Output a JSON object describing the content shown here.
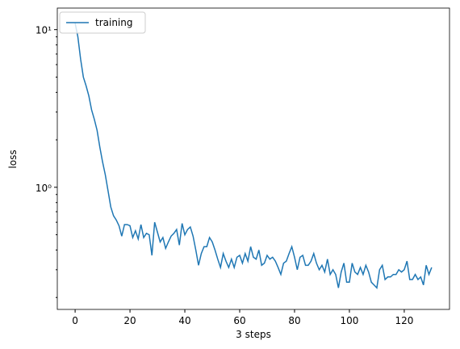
{
  "chart_data": {
    "type": "line",
    "xlabel": "3 steps",
    "ylabel": "loss",
    "x": [
      0,
      1,
      2,
      3,
      4,
      5,
      6,
      7,
      8,
      9,
      10,
      11,
      12,
      13,
      14,
      15,
      16,
      17,
      18,
      19,
      20,
      21,
      22,
      23,
      24,
      25,
      26,
      27,
      28,
      29,
      30,
      31,
      32,
      33,
      34,
      35,
      36,
      37,
      38,
      39,
      40,
      41,
      42,
      43,
      44,
      45,
      46,
      47,
      48,
      49,
      50,
      51,
      52,
      53,
      54,
      55,
      56,
      57,
      58,
      59,
      60,
      61,
      62,
      63,
      64,
      65,
      66,
      67,
      68,
      69,
      70,
      71,
      72,
      73,
      74,
      75,
      76,
      77,
      78,
      79,
      80,
      81,
      82,
      83,
      84,
      85,
      86,
      87,
      88,
      89,
      90,
      91,
      92,
      93,
      94,
      95,
      96,
      97,
      98,
      99,
      100,
      101,
      102,
      103,
      104,
      105,
      106,
      107,
      108,
      109,
      110,
      111,
      112,
      113,
      114,
      115,
      116,
      117,
      118,
      119,
      120,
      121,
      122,
      123,
      124,
      125,
      126,
      127,
      128,
      129,
      130
    ],
    "series": [
      {
        "name": "training",
        "color": "#1f77b4",
        "values": [
          11,
          9,
          6.5,
          5,
          4.4,
          3.8,
          3.1,
          2.7,
          2.3,
          1.8,
          1.45,
          1.2,
          0.95,
          0.75,
          0.66,
          0.62,
          0.57,
          0.49,
          0.58,
          0.58,
          0.57,
          0.48,
          0.53,
          0.47,
          0.58,
          0.48,
          0.51,
          0.5,
          0.37,
          0.6,
          0.52,
          0.45,
          0.48,
          0.41,
          0.45,
          0.49,
          0.51,
          0.54,
          0.43,
          0.59,
          0.5,
          0.54,
          0.56,
          0.49,
          0.4,
          0.32,
          0.38,
          0.42,
          0.42,
          0.48,
          0.45,
          0.4,
          0.35,
          0.31,
          0.38,
          0.34,
          0.31,
          0.35,
          0.31,
          0.36,
          0.37,
          0.33,
          0.38,
          0.34,
          0.42,
          0.36,
          0.35,
          0.4,
          0.32,
          0.33,
          0.37,
          0.35,
          0.36,
          0.34,
          0.31,
          0.28,
          0.33,
          0.34,
          0.38,
          0.42,
          0.36,
          0.3,
          0.36,
          0.37,
          0.32,
          0.32,
          0.34,
          0.38,
          0.33,
          0.3,
          0.32,
          0.29,
          0.35,
          0.28,
          0.3,
          0.28,
          0.23,
          0.29,
          0.33,
          0.25,
          0.25,
          0.33,
          0.29,
          0.28,
          0.31,
          0.28,
          0.32,
          0.29,
          0.25,
          0.24,
          0.23,
          0.3,
          0.32,
          0.26,
          0.27,
          0.27,
          0.28,
          0.28,
          0.3,
          0.29,
          0.3,
          0.34,
          0.26,
          0.26,
          0.28,
          0.26,
          0.27,
          0.24,
          0.32,
          0.28,
          0.31
        ]
      }
    ],
    "xlim": [
      -6.5,
      136.5
    ],
    "xticks": [
      0,
      20,
      40,
      60,
      80,
      100,
      120
    ],
    "ylim": [
      0.168,
      13.7
    ],
    "log_y": true,
    "yticks": [
      {
        "value": 1,
        "label": "10⁰"
      },
      {
        "value": 10,
        "label": "10¹"
      }
    ],
    "yminor": [
      0.2,
      0.3,
      0.4,
      0.5,
      0.6,
      0.7,
      0.8,
      0.9,
      2,
      3,
      4,
      5,
      6,
      7,
      8,
      9
    ],
    "legend": "upper left"
  }
}
